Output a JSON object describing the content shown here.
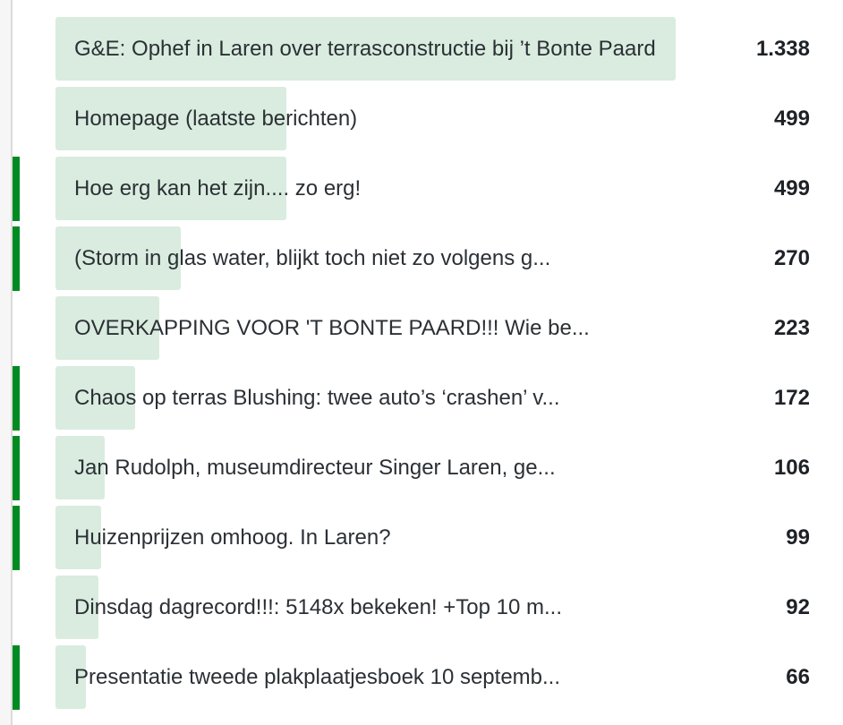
{
  "max_value": 1338,
  "accent_color": "#008a22",
  "bar_color": "#d9ecdf",
  "rows": [
    {
      "title": "G&E: Ophef in Laren over terrasconstructie bij ’t Bonte Paard",
      "value_label": "1.338",
      "value": 1338,
      "marked": false
    },
    {
      "title": "Homepage (laatste berichten)",
      "value_label": "499",
      "value": 499,
      "marked": false
    },
    {
      "title": "Hoe erg kan het zijn.... zo erg!",
      "value_label": "499",
      "value": 499,
      "marked": true
    },
    {
      "title": "(Storm in glas water, blijkt toch niet zo volgens g...",
      "value_label": "270",
      "value": 270,
      "marked": true
    },
    {
      "title": "OVERKAPPING VOOR 'T BONTE PAARD!!! Wie be...",
      "value_label": "223",
      "value": 223,
      "marked": false
    },
    {
      "title": "Chaos op terras Blushing: twee auto’s ‘crashen’ v...",
      "value_label": "172",
      "value": 172,
      "marked": true
    },
    {
      "title": "Jan Rudolph, museumdirecteur Singer Laren, ge...",
      "value_label": "106",
      "value": 106,
      "marked": true
    },
    {
      "title": "Huizenprijzen omhoog. In Laren?",
      "value_label": "99",
      "value": 99,
      "marked": true
    },
    {
      "title": "Dinsdag dagrecord!!!: 5148x bekeken! +Top 10 m...",
      "value_label": "92",
      "value": 92,
      "marked": false
    },
    {
      "title": "Presentatie tweede plakplaatjesboek 10 septemb...",
      "value_label": "66",
      "value": 66,
      "marked": true
    }
  ]
}
